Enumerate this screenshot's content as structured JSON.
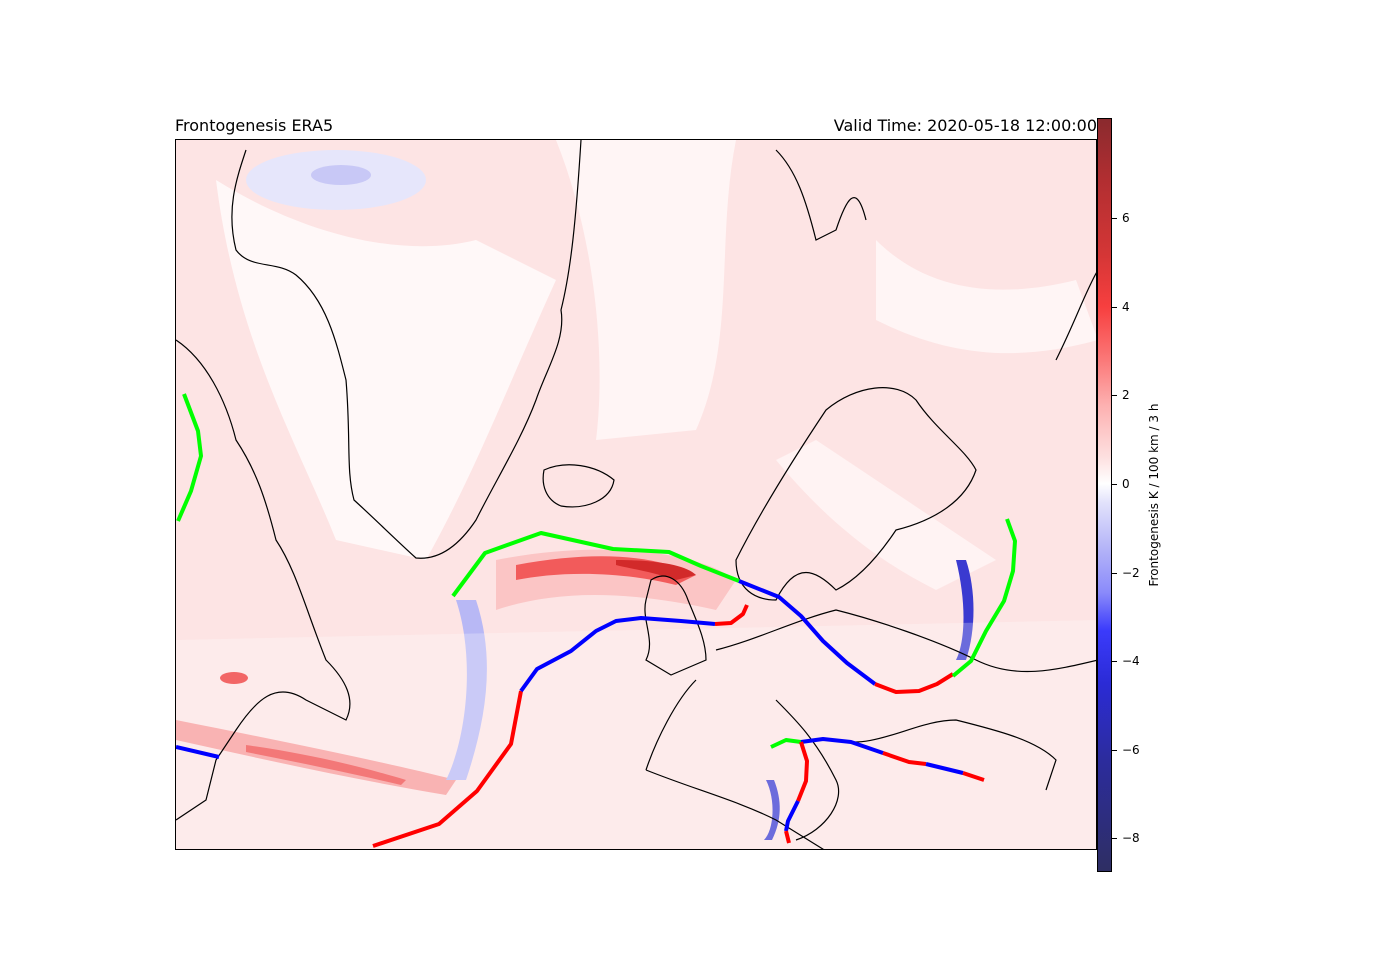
{
  "chart_data": {
    "type": "heatmap",
    "title": "Frontogenesis ERA5",
    "valid_time": "Valid Time: 2020-05-18 12:00:00",
    "colorbar": {
      "label": "Frontogenesis K / 100 km / 3 h",
      "range": [
        -8.75,
        8.25
      ],
      "ticks": [
        "6",
        "4",
        "2",
        "0",
        "−2",
        "−4",
        "−6",
        "−8"
      ],
      "tick_values": [
        6,
        4,
        2,
        0,
        -2,
        -4,
        -6,
        -8
      ],
      "colormap": "bwr (blue-white-red)"
    },
    "fronts": {
      "cold_color": "#0000ff",
      "warm_color": "#ff0000",
      "occluded_color": "#00ff00"
    }
  }
}
